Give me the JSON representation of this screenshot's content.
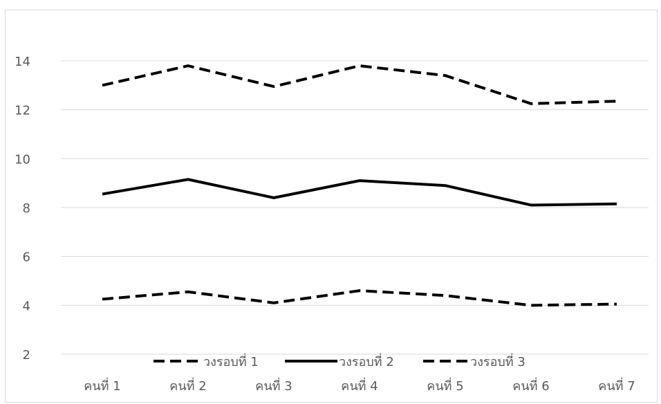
{
  "chart_data": {
    "type": "line",
    "categories": [
      "คนที่ 1",
      "คนที่ 2",
      "คนที่ 3",
      "คนที่ 4",
      "คนที่ 5",
      "คนที่ 6",
      "คนที่ 7"
    ],
    "series": [
      {
        "name": "วงรอบที่ 1",
        "values": [
          4.25,
          4.55,
          4.1,
          4.6,
          4.4,
          4.0,
          4.05
        ],
        "style": "dashed",
        "color": "#000000"
      },
      {
        "name": "วงรอบที่ 2",
        "values": [
          8.55,
          9.15,
          8.4,
          9.1,
          8.9,
          8.1,
          8.15
        ],
        "style": "solid",
        "color": "#000000"
      },
      {
        "name": "วงรอบที่ 3",
        "values": [
          13.0,
          13.8,
          12.95,
          13.8,
          13.4,
          12.25,
          12.35
        ],
        "style": "dashed",
        "color": "#000000"
      }
    ],
    "y_ticks": [
      2,
      4,
      6,
      8,
      10,
      12,
      14
    ],
    "ylim": [
      2,
      16
    ],
    "title": "",
    "xlabel": "",
    "ylabel": "",
    "grid": true,
    "legend_position": "bottom"
  }
}
